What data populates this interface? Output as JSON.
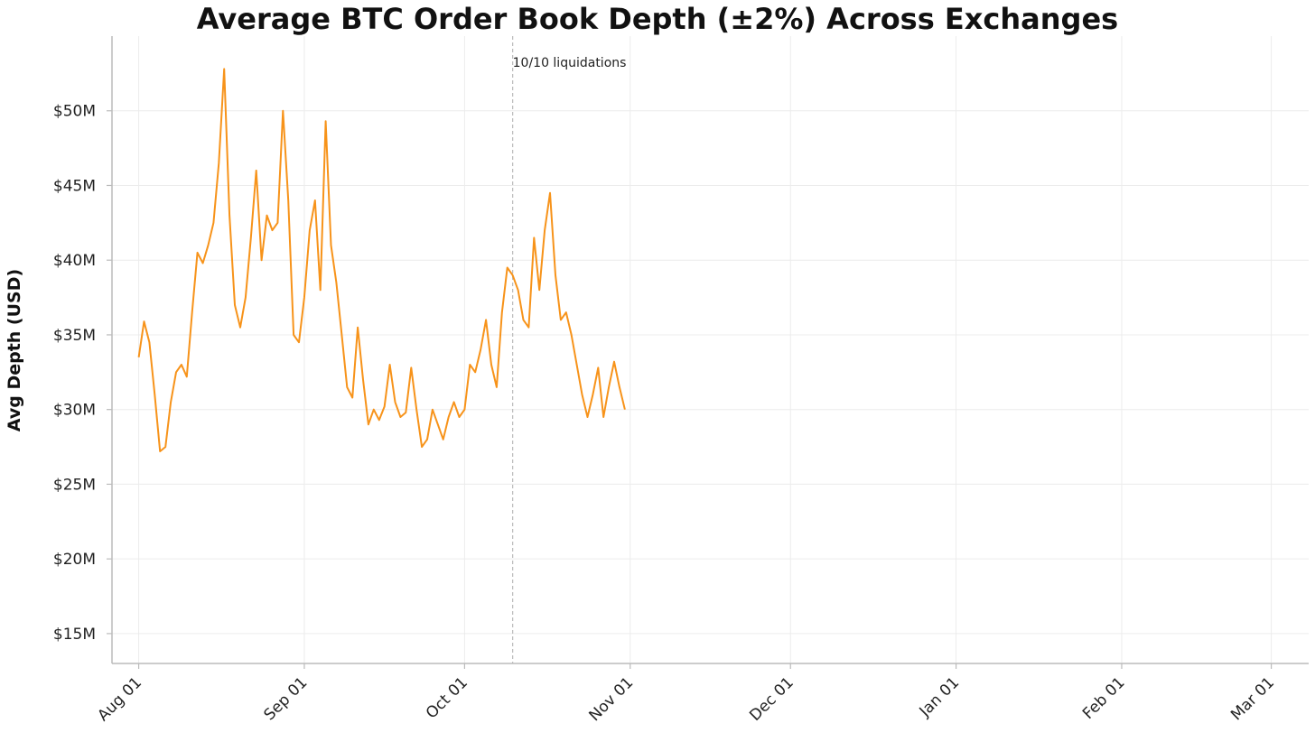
{
  "chart_data": {
    "type": "line",
    "title": "Average BTC Order Book Depth (±2%) Across Exchanges",
    "xlabel": "",
    "ylabel": "Avg Depth (USD)",
    "x_axis": {
      "kind": "date",
      "range": [
        "2025-07-27",
        "2026-03-08"
      ],
      "ticks": [
        {
          "date": "2025-08-01",
          "label": "Aug 01"
        },
        {
          "date": "2025-09-01",
          "label": "Sep 01"
        },
        {
          "date": "2025-10-01",
          "label": "Oct 01"
        },
        {
          "date": "2025-11-01",
          "label": "Nov 01"
        },
        {
          "date": "2025-12-01",
          "label": "Dec 01"
        },
        {
          "date": "2026-01-01",
          "label": "Jan 01"
        },
        {
          "date": "2026-02-01",
          "label": "Feb 01"
        },
        {
          "date": "2026-03-01",
          "label": "Mar 01"
        }
      ]
    },
    "y_axis": {
      "range": [
        13000000,
        55000000
      ],
      "ticks": [
        {
          "value": 15000000,
          "label": "$15M"
        },
        {
          "value": 20000000,
          "label": "$20M"
        },
        {
          "value": 25000000,
          "label": "$25M"
        },
        {
          "value": 30000000,
          "label": "$30M"
        },
        {
          "value": 35000000,
          "label": "$35M"
        },
        {
          "value": 40000000,
          "label": "$40M"
        },
        {
          "value": 45000000,
          "label": "$45M"
        },
        {
          "value": 50000000,
          "label": "$50M"
        }
      ]
    },
    "grid": true,
    "legend": "none",
    "annotations": [
      {
        "type": "vline",
        "x": "2025-10-10",
        "text": "10/10 liquidations",
        "color": "#bbbbbb"
      }
    ],
    "series": [
      {
        "color": "#f7931a",
        "points": [
          [
            "2025-08-01",
            33.5
          ],
          [
            "2025-08-02",
            35.9
          ],
          [
            "2025-08-03",
            34.5
          ],
          [
            "2025-08-04",
            31.0
          ],
          [
            "2025-08-05",
            27.2
          ],
          [
            "2025-08-06",
            27.5
          ],
          [
            "2025-08-07",
            30.5
          ],
          [
            "2025-08-08",
            32.5
          ],
          [
            "2025-08-09",
            33.0
          ],
          [
            "2025-08-10",
            32.2
          ],
          [
            "2025-08-11",
            36.5
          ],
          [
            "2025-08-12",
            40.5
          ],
          [
            "2025-08-13",
            39.8
          ],
          [
            "2025-08-14",
            41.0
          ],
          [
            "2025-08-15",
            42.5
          ],
          [
            "2025-08-16",
            46.5
          ],
          [
            "2025-08-17",
            52.8
          ],
          [
            "2025-08-18",
            43.0
          ],
          [
            "2025-08-19",
            37.0
          ],
          [
            "2025-08-20",
            35.5
          ],
          [
            "2025-08-21",
            37.5
          ],
          [
            "2025-08-22",
            41.5
          ],
          [
            "2025-08-23",
            46.0
          ],
          [
            "2025-08-24",
            40.0
          ],
          [
            "2025-08-25",
            43.0
          ],
          [
            "2025-08-26",
            42.0
          ],
          [
            "2025-08-27",
            42.5
          ],
          [
            "2025-08-28",
            50.0
          ],
          [
            "2025-08-29",
            44.0
          ],
          [
            "2025-08-30",
            35.0
          ],
          [
            "2025-08-31",
            34.5
          ],
          [
            "2025-09-01",
            37.5
          ],
          [
            "2025-09-02",
            42.0
          ],
          [
            "2025-09-03",
            44.0
          ],
          [
            "2025-09-04",
            38.0
          ],
          [
            "2025-09-05",
            49.3
          ],
          [
            "2025-09-06",
            41.0
          ],
          [
            "2025-09-07",
            38.5
          ],
          [
            "2025-09-08",
            35.0
          ],
          [
            "2025-09-09",
            31.5
          ],
          [
            "2025-09-10",
            30.8
          ],
          [
            "2025-09-11",
            35.5
          ],
          [
            "2025-09-12",
            32.0
          ],
          [
            "2025-09-13",
            29.0
          ],
          [
            "2025-09-14",
            30.0
          ],
          [
            "2025-09-15",
            29.3
          ],
          [
            "2025-09-16",
            30.2
          ],
          [
            "2025-09-17",
            33.0
          ],
          [
            "2025-09-18",
            30.5
          ],
          [
            "2025-09-19",
            29.5
          ],
          [
            "2025-09-20",
            29.8
          ],
          [
            "2025-09-21",
            32.8
          ],
          [
            "2025-09-22",
            30.0
          ],
          [
            "2025-09-23",
            27.5
          ],
          [
            "2025-09-24",
            28.0
          ],
          [
            "2025-09-25",
            30.0
          ],
          [
            "2025-09-26",
            29.0
          ],
          [
            "2025-09-27",
            28.0
          ],
          [
            "2025-09-28",
            29.5
          ],
          [
            "2025-09-29",
            30.5
          ],
          [
            "2025-09-30",
            29.5
          ],
          [
            "2025-10-01",
            30.0
          ],
          [
            "2025-10-02",
            33.0
          ],
          [
            "2025-10-03",
            32.5
          ],
          [
            "2025-10-04",
            34.0
          ],
          [
            "2025-10-05",
            36.0
          ],
          [
            "2025-10-06",
            33.0
          ],
          [
            "2025-10-07",
            31.5
          ],
          [
            "2025-10-08",
            36.5
          ],
          [
            "2025-10-09",
            39.5
          ],
          [
            "2025-10-10",
            39.0
          ],
          [
            "2025-10-11",
            38.0
          ],
          [
            "2025-10-12",
            36.0
          ],
          [
            "2025-10-13",
            35.5
          ],
          [
            "2025-10-14",
            41.5
          ],
          [
            "2025-10-15",
            38.0
          ],
          [
            "2025-10-16",
            42.0
          ],
          [
            "2025-10-17",
            44.5
          ],
          [
            "2025-10-18",
            39.0
          ],
          [
            "2025-10-19",
            36.0
          ],
          [
            "2025-10-20",
            36.5
          ],
          [
            "2025-10-21",
            35.0
          ],
          [
            "2025-10-22",
            33.0
          ],
          [
            "2025-10-23",
            31.0
          ],
          [
            "2025-10-24",
            29.5
          ],
          [
            "2025-10-25",
            31.0
          ],
          [
            "2025-10-26",
            32.8
          ],
          [
            "2025-10-27",
            29.5
          ],
          [
            "2025-10-28",
            31.5
          ],
          [
            "2025-10-29",
            33.2
          ],
          [
            "2025-10-30",
            31.5
          ],
          [
            "2025-10-31",
            30.0
          ]
        ]
      }
    ]
  }
}
